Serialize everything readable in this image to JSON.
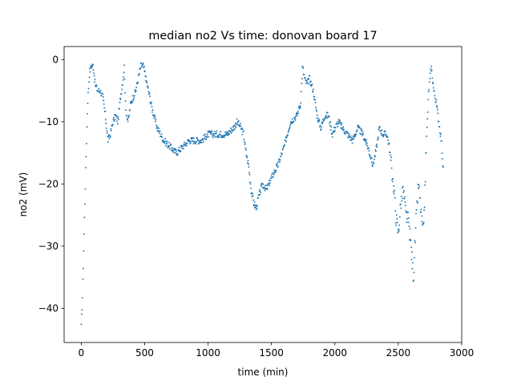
{
  "chart_data": {
    "type": "scatter",
    "title": "median no2 Vs time: donovan board 17",
    "xlabel": "time (min)",
    "ylabel": "no2 (mV)",
    "xlim": [
      -135,
      3000
    ],
    "ylim": [
      -45.5,
      2.1
    ],
    "xticks": [
      0,
      500,
      1000,
      1500,
      2000,
      2500,
      3000
    ],
    "xtick_labels": [
      "0",
      "500",
      "1000",
      "1500",
      "2000",
      "2500",
      "3000"
    ],
    "yticks": [
      0,
      -10,
      -20,
      -30,
      -40
    ],
    "ytick_labels": [
      "0",
      "−10",
      "−20",
      "−30",
      "−40"
    ],
    "grid": false,
    "legend": "none",
    "marker_color": "#1f77b4",
    "series": [
      {
        "anchors_x": [
          0,
          10,
          20,
          35,
          50,
          65,
          80,
          95,
          110,
          130,
          150,
          170,
          190,
          210,
          230,
          250,
          270,
          290,
          310,
          330,
          340,
          350,
          370,
          390,
          410,
          430,
          450,
          470,
          490,
          510,
          530,
          560,
          600,
          650,
          700,
          750,
          800,
          850,
          900,
          950,
          1000,
          1050,
          1100,
          1150,
          1200,
          1230,
          1260,
          1280,
          1300,
          1320,
          1340,
          1360,
          1380,
          1400,
          1430,
          1460,
          1500,
          1550,
          1600,
          1650,
          1700,
          1730,
          1745,
          1760,
          1780,
          1800,
          1830,
          1860,
          1890,
          1920,
          1950,
          1980,
          2000,
          2030,
          2060,
          2100,
          2140,
          2180,
          2220,
          2260,
          2300,
          2330,
          2350,
          2380,
          2410,
          2430,
          2450,
          2470,
          2480,
          2500,
          2520,
          2540,
          2560,
          2580,
          2600,
          2620,
          2640,
          2660,
          2680,
          2700,
          2720,
          2740,
          2750,
          2760,
          2780,
          2800,
          2820,
          2840,
          2855
        ],
        "anchors_y": [
          -43,
          -38,
          -30,
          -18,
          -7,
          -2,
          -1,
          -1,
          -4,
          -5,
          -5,
          -6,
          -9,
          -13,
          -12,
          -10,
          -9,
          -10,
          -6,
          -3,
          -1,
          -8,
          -10,
          -7,
          -6,
          -5,
          -3,
          -1,
          -1,
          -3,
          -5,
          -8,
          -11,
          -13,
          -14,
          -15,
          -14,
          -13,
          -13,
          -13,
          -12,
          -12,
          -12,
          -12,
          -11,
          -10,
          -11,
          -12,
          -15,
          -17,
          -21,
          -23,
          -24,
          -22,
          -20,
          -21,
          -19,
          -17,
          -14,
          -10,
          -9,
          -7,
          -1,
          -3,
          -4,
          -3,
          -5,
          -9,
          -11,
          -9,
          -9,
          -12,
          -11,
          -10,
          -11,
          -12,
          -13,
          -11,
          -12,
          -14,
          -17,
          -14,
          -11,
          -12,
          -12,
          -14,
          -18,
          -22,
          -25,
          -28,
          -23,
          -21,
          -25,
          -26,
          -30,
          -35,
          -26,
          -20,
          -25,
          -28,
          -14,
          -5,
          -3,
          -1,
          -5,
          -7,
          -10,
          -13,
          -18
        ]
      }
    ]
  }
}
